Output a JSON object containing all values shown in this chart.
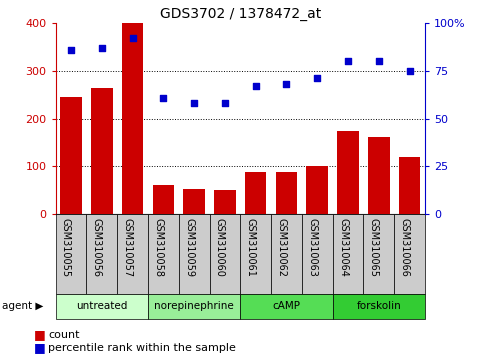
{
  "title": "GDS3702 / 1378472_at",
  "samples": [
    "GSM310055",
    "GSM310056",
    "GSM310057",
    "GSM310058",
    "GSM310059",
    "GSM310060",
    "GSM310061",
    "GSM310062",
    "GSM310063",
    "GSM310064",
    "GSM310065",
    "GSM310066"
  ],
  "counts": [
    245,
    265,
    400,
    60,
    52,
    50,
    88,
    88,
    100,
    175,
    162,
    120
  ],
  "percentiles": [
    86,
    87,
    92,
    61,
    58,
    58,
    67,
    68,
    71,
    80,
    80,
    75
  ],
  "bar_color": "#cc0000",
  "dot_color": "#0000cc",
  "ylim_left": [
    0,
    400
  ],
  "ylim_right": [
    0,
    100
  ],
  "yticks_left": [
    0,
    100,
    200,
    300,
    400
  ],
  "yticks_right": [
    0,
    25,
    50,
    75,
    100
  ],
  "yticklabels_right": [
    "0",
    "25",
    "50",
    "75",
    "100%"
  ],
  "groups": [
    {
      "label": "untreated",
      "indices": [
        0,
        1,
        2
      ],
      "color": "#ccffcc"
    },
    {
      "label": "norepinephrine",
      "indices": [
        3,
        4,
        5
      ],
      "color": "#99ee99"
    },
    {
      "label": "cAMP",
      "indices": [
        6,
        7,
        8
      ],
      "color": "#55dd55"
    },
    {
      "label": "forskolin",
      "indices": [
        9,
        10,
        11
      ],
      "color": "#33cc33"
    }
  ],
  "legend_count_label": "count",
  "legend_pct_label": "percentile rank within the sample",
  "agent_label": "agent",
  "tick_bg_color": "#cccccc",
  "left_tick_color": "#cc0000",
  "right_tick_color": "#0000cc",
  "fig_width": 4.83,
  "fig_height": 3.54,
  "fig_dpi": 100
}
